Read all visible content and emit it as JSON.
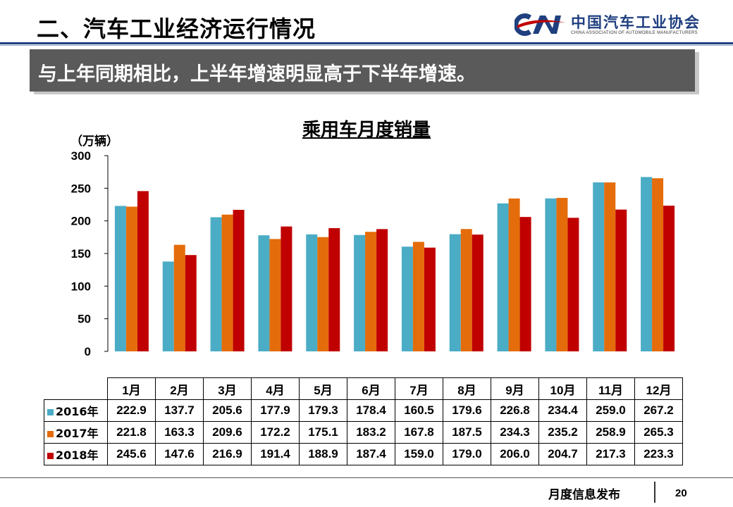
{
  "header": {
    "title": "二、汽车工业经济运行情况"
  },
  "logo": {
    "mark_text": "CAM",
    "name_cn": "中国汽车工业协会",
    "name_en": "CHINA ASSOCIATION OF AUTOMOBILE MANUFACTURERS"
  },
  "banner": {
    "text": "与上年同期相比，上半年增速明显高于下半年增速。"
  },
  "footer": {
    "text": "月度信息发布",
    "page": "20"
  },
  "colors": {
    "s2016": "#4bacc6",
    "s2017": "#e46c0a",
    "s2018": "#c00000",
    "navy": "#1f3f7f"
  },
  "chart_data": {
    "type": "bar",
    "title": "乘用车月度销量",
    "ylabel": "（万辆）",
    "ylim": [
      0,
      300
    ],
    "yticks": [
      0,
      50,
      100,
      150,
      200,
      250,
      300
    ],
    "grid": false,
    "categories": [
      "1月",
      "2月",
      "3月",
      "4月",
      "5月",
      "6月",
      "7月",
      "8月",
      "9月",
      "10月",
      "11月",
      "12月"
    ],
    "series": [
      {
        "name": "2016年",
        "color": "#4bacc6",
        "values": [
          222.9,
          137.7,
          205.6,
          177.9,
          179.3,
          178.4,
          160.5,
          179.6,
          226.8,
          234.4,
          259.0,
          267.2
        ],
        "display": [
          "222.9",
          "137.7",
          "205.6",
          "177.9",
          "179.3",
          "178.4",
          "160.5",
          "179.6",
          "226.8",
          "234.4",
          "259.0",
          "267.2"
        ]
      },
      {
        "name": "2017年",
        "color": "#e46c0a",
        "values": [
          221.8,
          163.3,
          209.6,
          172.2,
          175.1,
          183.2,
          167.8,
          187.5,
          234.3,
          235.2,
          258.9,
          265.3
        ],
        "display": [
          "221.8",
          "163.3",
          "209.6",
          "172.2",
          "175.1",
          "183.2",
          "167.8",
          "187.5",
          "234.3",
          "235.2",
          "258.9",
          "265.3"
        ]
      },
      {
        "name": "2018年",
        "color": "#c00000",
        "values": [
          245.6,
          147.6,
          216.9,
          191.4,
          188.9,
          187.4,
          159.0,
          179.0,
          206.0,
          204.7,
          217.3,
          223.3
        ],
        "display": [
          "245.6",
          "147.6",
          "216.9",
          "191.4",
          "188.9",
          "187.4",
          "159.0",
          "179.0",
          "206.0",
          "204.7",
          "217.3",
          "223.3"
        ]
      }
    ]
  }
}
